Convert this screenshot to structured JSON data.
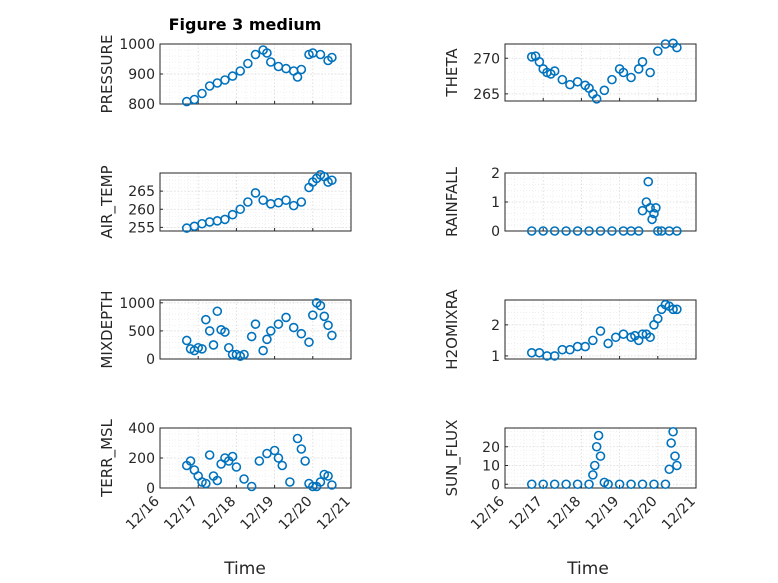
{
  "title": "Figure 3 medium",
  "xlabel": "Time",
  "colors": {
    "marker": "#0072bd",
    "axis": "#262626",
    "grid": "#d9d9d9"
  },
  "chart_data": [
    {
      "id": "pressure",
      "type": "scatter",
      "ylabel": "PRESSURE",
      "ylim": [
        800,
        1000
      ],
      "yticks": [
        "800",
        "900",
        "1000"
      ],
      "xticks": [
        "12/16",
        "12/17",
        "12/18",
        "12/19",
        "12/20",
        "12/21"
      ],
      "xlim": [
        "12/16",
        "12/21"
      ],
      "x": [
        16.7,
        16.9,
        17.1,
        17.3,
        17.5,
        17.7,
        17.9,
        18.1,
        18.3,
        18.5,
        18.7,
        18.8,
        18.9,
        19.1,
        19.3,
        19.5,
        19.6,
        19.7,
        19.9,
        20.0,
        20.2,
        20.4,
        20.5
      ],
      "y": [
        808,
        815,
        835,
        860,
        870,
        880,
        893,
        910,
        935,
        965,
        980,
        970,
        940,
        925,
        918,
        910,
        890,
        915,
        965,
        970,
        965,
        945,
        955
      ]
    },
    {
      "id": "theta",
      "type": "scatter",
      "ylabel": "THETA",
      "ylim": [
        264,
        272
      ],
      "yticks": [
        "265",
        "270"
      ],
      "xticks": [
        "12/16",
        "12/17",
        "12/18",
        "12/19",
        "12/20",
        "12/21"
      ],
      "xlim": [
        "12/16",
        "12/21"
      ],
      "x": [
        16.7,
        16.8,
        16.9,
        17.0,
        17.1,
        17.2,
        17.3,
        17.5,
        17.7,
        17.9,
        18.1,
        18.2,
        18.3,
        18.4,
        18.6,
        18.8,
        19.0,
        19.1,
        19.3,
        19.5,
        19.6,
        19.8,
        20.0,
        20.2,
        20.4,
        20.5
      ],
      "y": [
        270.2,
        270.3,
        269.5,
        268.5,
        268,
        267.8,
        268.2,
        267,
        266.3,
        266.7,
        266.2,
        265.8,
        265,
        264.3,
        265.5,
        267,
        268.5,
        268,
        267.3,
        268.5,
        269.5,
        268,
        271,
        272,
        272.1,
        271.5
      ]
    },
    {
      "id": "air_temp",
      "type": "scatter",
      "ylabel": "AIR_TEMP",
      "ylim": [
        254,
        270
      ],
      "yticks": [
        "255",
        "260",
        "265"
      ],
      "xticks": [
        "12/16",
        "12/17",
        "12/18",
        "12/19",
        "12/20",
        "12/21"
      ],
      "xlim": [
        "12/16",
        "12/21"
      ],
      "x": [
        16.7,
        16.9,
        17.1,
        17.3,
        17.5,
        17.7,
        17.9,
        18.1,
        18.3,
        18.5,
        18.7,
        18.9,
        19.1,
        19.3,
        19.5,
        19.7,
        19.9,
        20.0,
        20.1,
        20.2,
        20.3,
        20.4,
        20.5
      ],
      "y": [
        254.8,
        255.3,
        256,
        256.5,
        256.8,
        257.2,
        258.5,
        260,
        262,
        264.5,
        262.5,
        261.5,
        261.8,
        262.5,
        261,
        262,
        266,
        267.5,
        268.5,
        269.5,
        269,
        267.5,
        268
      ]
    },
    {
      "id": "rainfall",
      "type": "scatter",
      "ylabel": "RAINFALL",
      "ylim": [
        0,
        2
      ],
      "yticks": [
        "0",
        "1",
        "2"
      ],
      "xticks": [
        "12/16",
        "12/17",
        "12/18",
        "12/19",
        "12/20",
        "12/21"
      ],
      "xlim": [
        "12/16",
        "12/21"
      ],
      "x": [
        16.7,
        17.0,
        17.3,
        17.6,
        17.9,
        18.2,
        18.5,
        18.8,
        19.1,
        19.3,
        19.5,
        19.6,
        19.7,
        19.75,
        19.8,
        19.85,
        19.9,
        19.95,
        20.0,
        20.1,
        20.3,
        20.5
      ],
      "y": [
        0,
        0,
        0,
        0,
        0,
        0,
        0,
        0,
        0,
        0,
        0,
        0.7,
        1.0,
        1.7,
        0.8,
        0.4,
        0.6,
        0.8,
        0,
        0,
        0,
        0
      ]
    },
    {
      "id": "mixdepth",
      "type": "scatter",
      "ylabel": "MIXDEPTH",
      "ylim": [
        0,
        1050
      ],
      "yticks": [
        "0",
        "500",
        "1000"
      ],
      "xticks": [
        "12/16",
        "12/17",
        "12/18",
        "12/19",
        "12/20",
        "12/21"
      ],
      "xlim": [
        "12/16",
        "12/21"
      ],
      "x": [
        16.7,
        16.8,
        16.9,
        17.0,
        17.1,
        17.2,
        17.3,
        17.4,
        17.5,
        17.6,
        17.7,
        17.8,
        17.9,
        18.0,
        18.1,
        18.2,
        18.4,
        18.5,
        18.7,
        18.8,
        18.9,
        19.1,
        19.3,
        19.5,
        19.7,
        19.9,
        20.0,
        20.1,
        20.2,
        20.3,
        20.4,
        20.5
      ],
      "y": [
        330,
        180,
        150,
        200,
        180,
        700,
        500,
        250,
        850,
        520,
        480,
        200,
        80,
        80,
        50,
        80,
        400,
        620,
        150,
        350,
        500,
        620,
        740,
        560,
        450,
        300,
        780,
        1000,
        950,
        760,
        600,
        420
      ]
    },
    {
      "id": "h2omixra",
      "type": "scatter",
      "ylabel": "H2OMIXRA",
      "ylim": [
        0.9,
        2.8
      ],
      "yticks": [
        "1",
        "2"
      ],
      "xticks": [
        "12/16",
        "12/17",
        "12/18",
        "12/19",
        "12/20",
        "12/21"
      ],
      "xlim": [
        "12/16",
        "12/21"
      ],
      "x": [
        16.7,
        16.9,
        17.1,
        17.3,
        17.5,
        17.7,
        17.9,
        18.1,
        18.3,
        18.5,
        18.7,
        18.9,
        19.1,
        19.3,
        19.4,
        19.5,
        19.6,
        19.7,
        19.8,
        19.9,
        20.0,
        20.1,
        20.2,
        20.3,
        20.4,
        20.5
      ],
      "y": [
        1.1,
        1.1,
        1.0,
        1.0,
        1.2,
        1.2,
        1.3,
        1.3,
        1.5,
        1.8,
        1.4,
        1.6,
        1.7,
        1.6,
        1.65,
        1.5,
        1.7,
        1.7,
        1.6,
        2.0,
        2.2,
        2.5,
        2.65,
        2.6,
        2.5,
        2.5
      ]
    },
    {
      "id": "terr_msl",
      "type": "scatter",
      "ylabel": "TERR_MSL",
      "ylim": [
        0,
        400
      ],
      "yticks": [
        "0",
        "200",
        "400"
      ],
      "xticks": [
        "12/16",
        "12/17",
        "12/18",
        "12/19",
        "12/20",
        "12/21"
      ],
      "xlim": [
        "12/16",
        "12/21"
      ],
      "x": [
        16.7,
        16.8,
        16.9,
        17.0,
        17.1,
        17.2,
        17.3,
        17.4,
        17.5,
        17.6,
        17.7,
        17.8,
        17.9,
        18.0,
        18.2,
        18.4,
        18.6,
        18.8,
        19.0,
        19.1,
        19.2,
        19.4,
        19.6,
        19.7,
        19.8,
        19.9,
        20.0,
        20.1,
        20.2,
        20.3,
        20.4,
        20.5
      ],
      "y": [
        150,
        180,
        120,
        80,
        40,
        30,
        220,
        80,
        50,
        160,
        200,
        180,
        210,
        140,
        60,
        10,
        180,
        230,
        250,
        200,
        150,
        40,
        330,
        260,
        180,
        30,
        10,
        10,
        40,
        90,
        80,
        20
      ]
    },
    {
      "id": "sun_flux",
      "type": "scatter",
      "ylabel": "SUN_FLUX",
      "ylim": [
        -2,
        30
      ],
      "yticks": [
        "0",
        "10",
        "20"
      ],
      "xticks": [
        "12/16",
        "12/17",
        "12/18",
        "12/19",
        "12/20",
        "12/21"
      ],
      "xlim": [
        "12/16",
        "12/21"
      ],
      "x": [
        16.7,
        17.0,
        17.3,
        17.6,
        17.9,
        18.2,
        18.3,
        18.35,
        18.4,
        18.45,
        18.5,
        18.6,
        18.7,
        19.0,
        19.3,
        19.6,
        19.9,
        20.2,
        20.3,
        20.35,
        20.4,
        20.45,
        20.5
      ],
      "y": [
        0,
        0,
        0,
        0,
        0,
        0,
        5,
        10,
        20,
        26,
        15,
        1,
        0,
        0,
        0,
        0,
        0,
        0,
        8,
        22,
        28,
        15,
        10
      ]
    }
  ]
}
